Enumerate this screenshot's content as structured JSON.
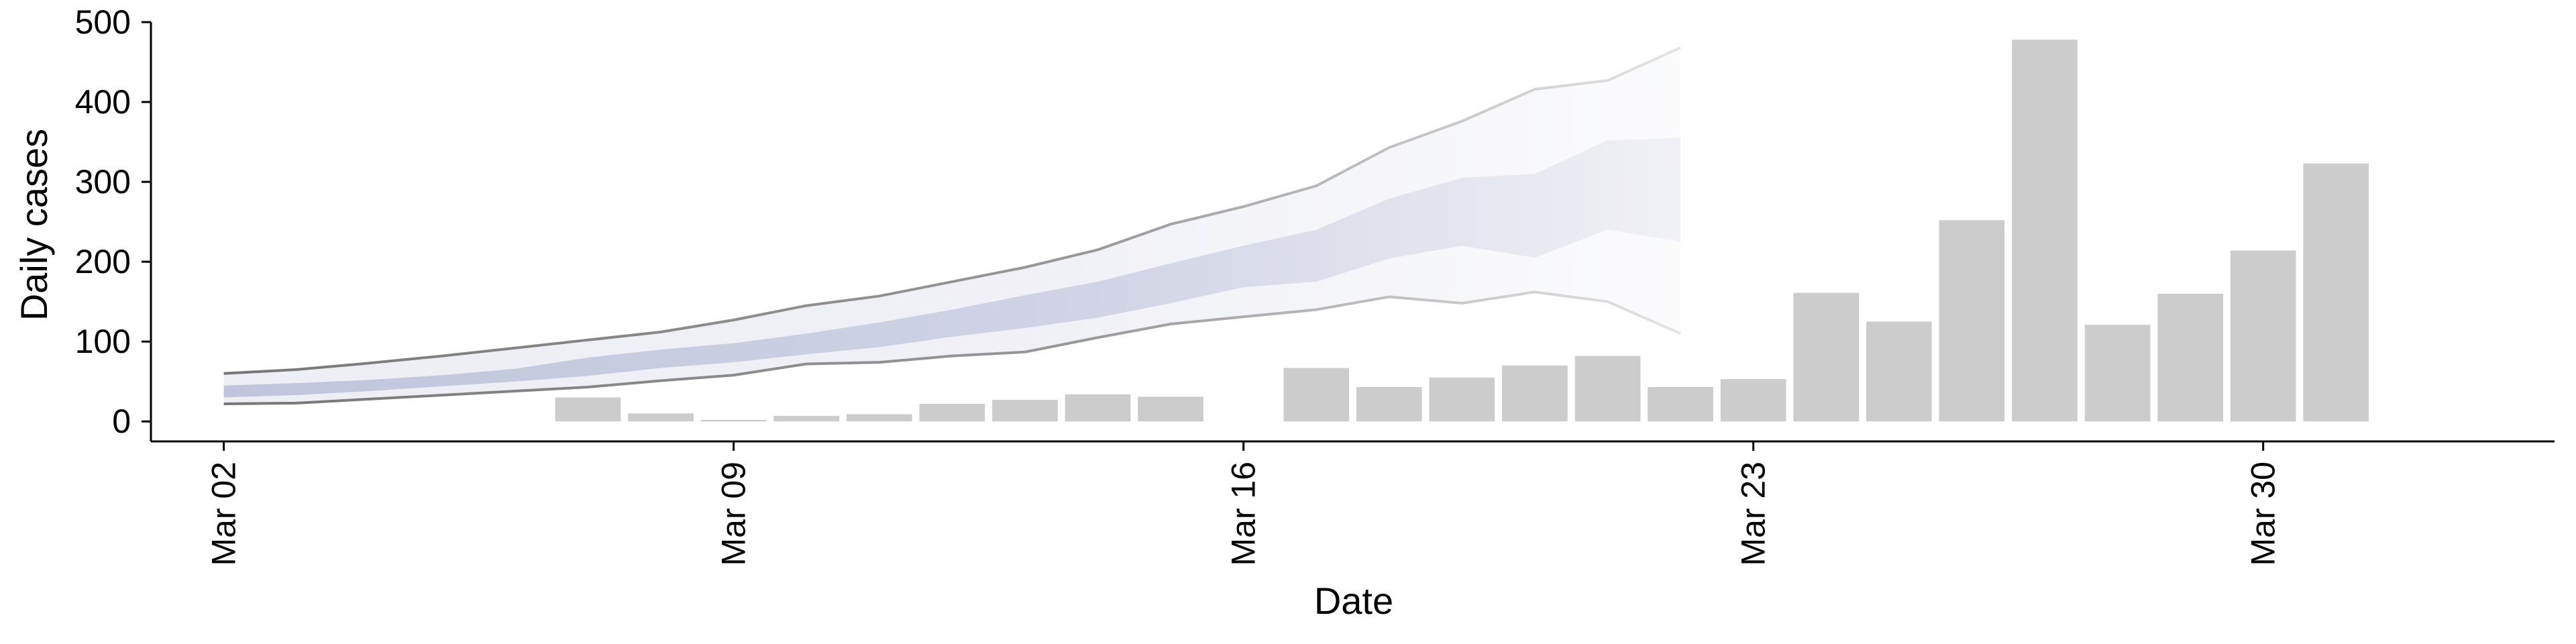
{
  "chart_data": {
    "type": "bar",
    "title": "",
    "xlabel": "Date",
    "ylabel": "Daily cases",
    "ylim": [
      -25,
      500
    ],
    "yticks": [
      0,
      100,
      200,
      300,
      400,
      500
    ],
    "xtick_labels": [
      {
        "date": "2020-03-02",
        "label": "Mar 02"
      },
      {
        "date": "2020-03-09",
        "label": "Mar 09"
      },
      {
        "date": "2020-03-16",
        "label": "Mar 16"
      },
      {
        "date": "2020-03-23",
        "label": "Mar 23"
      },
      {
        "date": "2020-03-30",
        "label": "Mar 30"
      }
    ],
    "xlim": [
      "2020-03-01",
      "2020-04-03"
    ],
    "grid": false,
    "colors": {
      "bars": "#cccccc",
      "outer_band": "#b9bdd6",
      "inner_band": "#a9b0d0",
      "band_edge": "#777777"
    },
    "bars": {
      "dates": [
        "2020-03-07",
        "2020-03-08",
        "2020-03-09",
        "2020-03-10",
        "2020-03-11",
        "2020-03-12",
        "2020-03-13",
        "2020-03-14",
        "2020-03-15",
        "2020-03-17",
        "2020-03-18",
        "2020-03-19",
        "2020-03-20",
        "2020-03-21",
        "2020-03-22",
        "2020-03-23",
        "2020-03-24",
        "2020-03-25",
        "2020-03-26",
        "2020-03-27",
        "2020-03-28",
        "2020-03-29",
        "2020-03-30",
        "2020-03-31"
      ],
      "values": [
        30,
        10,
        2,
        7,
        9,
        22,
        27,
        34,
        31,
        67,
        43,
        55,
        70,
        82,
        43,
        53,
        161,
        125,
        252,
        478,
        121,
        160,
        214,
        323
      ]
    },
    "forecast": {
      "dates": [
        "2020-03-02",
        "2020-03-03",
        "2020-03-04",
        "2020-03-05",
        "2020-03-06",
        "2020-03-07",
        "2020-03-08",
        "2020-03-09",
        "2020-03-10",
        "2020-03-11",
        "2020-03-12",
        "2020-03-13",
        "2020-03-14",
        "2020-03-15",
        "2020-03-16",
        "2020-03-17",
        "2020-03-18",
        "2020-03-19",
        "2020-03-20",
        "2020-03-21",
        "2020-03-22"
      ],
      "lower_90": [
        22,
        23,
        28,
        33,
        38,
        43,
        51,
        58,
        72,
        74,
        82,
        87,
        105,
        122,
        131,
        140,
        156,
        148,
        162,
        150,
        110
      ],
      "upper_90": [
        60,
        65,
        73,
        82,
        92,
        102,
        112,
        127,
        145,
        157,
        175,
        193,
        215,
        247,
        269,
        295,
        343,
        376,
        416,
        427,
        468
      ],
      "lower_50": [
        30,
        33,
        38,
        44,
        50,
        57,
        67,
        74,
        84,
        93,
        106,
        117,
        130,
        148,
        168,
        175,
        204,
        220,
        205,
        240,
        225
      ],
      "upper_50": [
        45,
        48,
        52,
        58,
        66,
        80,
        90,
        98,
        110,
        124,
        140,
        158,
        175,
        198,
        220,
        240,
        279,
        305,
        310,
        352,
        355
      ]
    }
  }
}
